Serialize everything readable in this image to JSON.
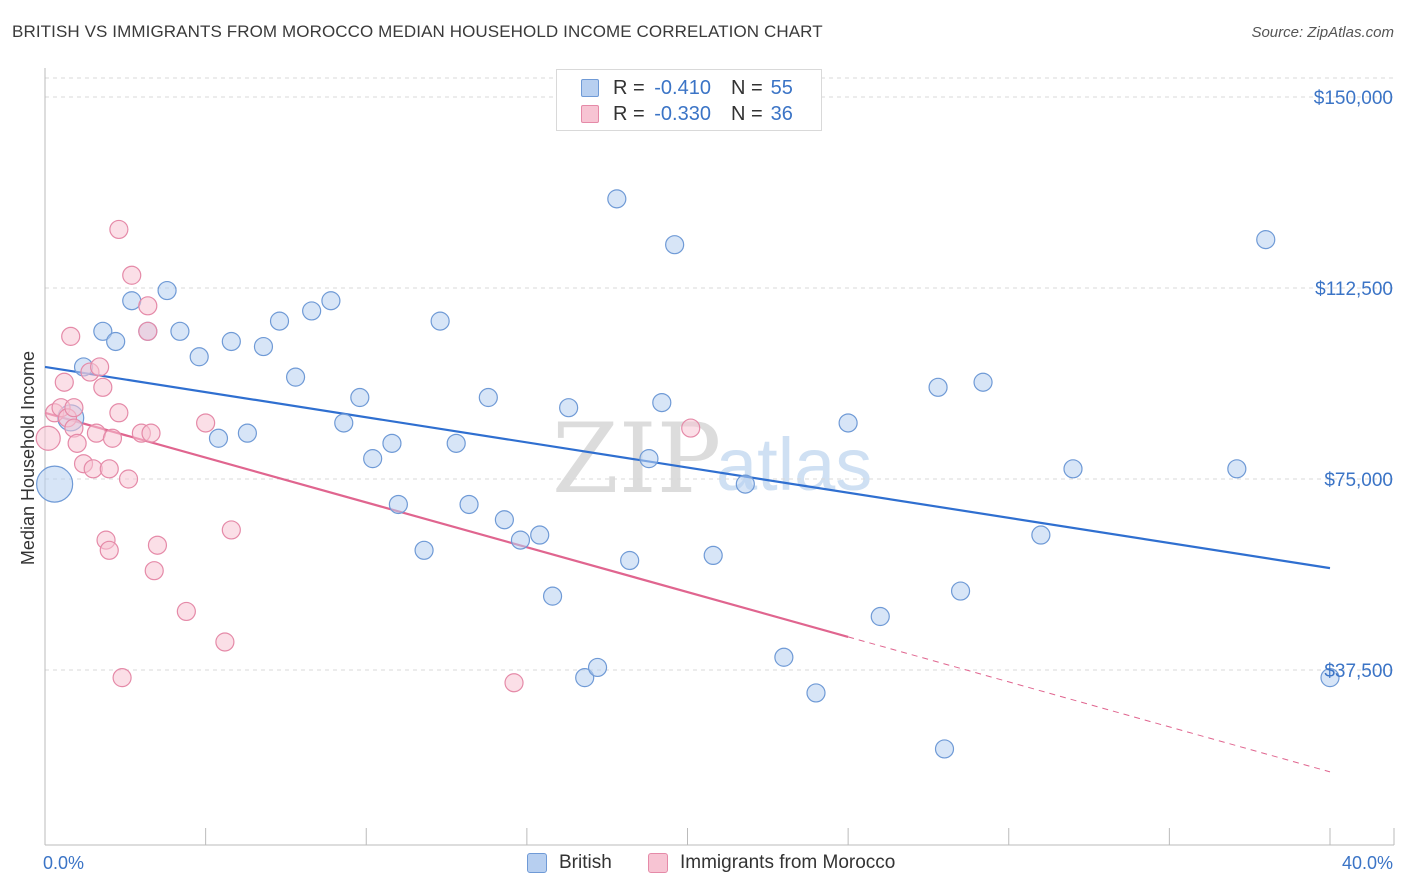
{
  "title": "BRITISH VS IMMIGRANTS FROM MOROCCO MEDIAN HOUSEHOLD INCOME CORRELATION CHART",
  "source": "Source: ZipAtlas.com",
  "legend": {
    "british": {
      "r_label": "R =",
      "r_value": "-0.410",
      "n_label": "N =",
      "n_value": "55"
    },
    "morocco": {
      "r_label": "R =",
      "r_value": "-0.330",
      "n_label": "N =",
      "n_value": "36"
    }
  },
  "bottom_legend": {
    "british": "British",
    "morocco": "Immigrants from Morocco"
  },
  "watermark": {
    "zip": "ZIP",
    "atlas": "atlas"
  },
  "colors": {
    "british_fill": "#b7cff0",
    "british_stroke": "#6f9ad6",
    "british_line": "#2f6fd0",
    "morocco_fill": "#f7c4d3",
    "morocco_stroke": "#e58aa8",
    "morocco_line": "#e0658f",
    "axis_text": "#3b74c6",
    "grid": "#d8d8d8"
  },
  "chart_data": {
    "type": "scatter",
    "title": "BRITISH VS IMMIGRANTS FROM MOROCCO MEDIAN HOUSEHOLD INCOME CORRELATION CHART",
    "xlabel": "",
    "ylabel": "Median Household Income",
    "xlim": [
      0,
      40
    ],
    "ylim": [
      0,
      155000
    ],
    "x_tick_labels": [
      "0.0%",
      "40.0%"
    ],
    "y_ticks": [
      {
        "value": 37500,
        "label": "$37,500"
      },
      {
        "value": 75000,
        "label": "$75,000"
      },
      {
        "value": 112500,
        "label": "$112,500"
      },
      {
        "value": 150000,
        "label": "$150,000"
      }
    ],
    "series": [
      {
        "name": "British",
        "points": [
          [
            0.3,
            74000
          ],
          [
            0.8,
            87000
          ],
          [
            1.2,
            97000
          ],
          [
            1.8,
            104000
          ],
          [
            2.2,
            102000
          ],
          [
            2.7,
            110000
          ],
          [
            3.2,
            104000
          ],
          [
            3.8,
            112000
          ],
          [
            4.2,
            104000
          ],
          [
            4.8,
            99000
          ],
          [
            5.4,
            83000
          ],
          [
            5.8,
            102000
          ],
          [
            6.3,
            84000
          ],
          [
            6.8,
            101000
          ],
          [
            7.3,
            106000
          ],
          [
            7.8,
            95000
          ],
          [
            8.3,
            108000
          ],
          [
            8.9,
            110000
          ],
          [
            9.3,
            86000
          ],
          [
            9.8,
            91000
          ],
          [
            10.2,
            79000
          ],
          [
            10.8,
            82000
          ],
          [
            11.0,
            70000
          ],
          [
            11.8,
            61000
          ],
          [
            12.3,
            106000
          ],
          [
            12.8,
            82000
          ],
          [
            13.2,
            70000
          ],
          [
            13.8,
            91000
          ],
          [
            14.3,
            67000
          ],
          [
            14.8,
            63000
          ],
          [
            15.4,
            64000
          ],
          [
            15.8,
            52000
          ],
          [
            16.3,
            89000
          ],
          [
            16.8,
            36000
          ],
          [
            17.2,
            38000
          ],
          [
            17.8,
            130000
          ],
          [
            18.2,
            59000
          ],
          [
            18.8,
            79000
          ],
          [
            19.2,
            90000
          ],
          [
            19.6,
            121000
          ],
          [
            20.8,
            60000
          ],
          [
            21.8,
            74000
          ],
          [
            23.0,
            40000
          ],
          [
            24.0,
            33000
          ],
          [
            25.0,
            86000
          ],
          [
            26.0,
            48000
          ],
          [
            27.8,
            93000
          ],
          [
            28.0,
            22000
          ],
          [
            28.5,
            53000
          ],
          [
            29.2,
            94000
          ],
          [
            31.0,
            64000
          ],
          [
            32.0,
            77000
          ],
          [
            37.1,
            77000
          ],
          [
            38.0,
            122000
          ],
          [
            40.0,
            36000
          ]
        ]
      },
      {
        "name": "Immigrants from Morocco",
        "points": [
          [
            0.1,
            83000
          ],
          [
            0.3,
            88000
          ],
          [
            0.5,
            89000
          ],
          [
            0.6,
            94000
          ],
          [
            0.7,
            87000
          ],
          [
            0.8,
            103000
          ],
          [
            0.9,
            89000
          ],
          [
            0.9,
            85000
          ],
          [
            1.0,
            82000
          ],
          [
            1.2,
            78000
          ],
          [
            1.4,
            96000
          ],
          [
            1.5,
            77000
          ],
          [
            1.6,
            84000
          ],
          [
            1.7,
            97000
          ],
          [
            1.8,
            93000
          ],
          [
            1.9,
            63000
          ],
          [
            2.0,
            61000
          ],
          [
            2.1,
            83000
          ],
          [
            2.3,
            124000
          ],
          [
            2.3,
            88000
          ],
          [
            2.4,
            36000
          ],
          [
            2.6,
            75000
          ],
          [
            2.7,
            115000
          ],
          [
            3.0,
            84000
          ],
          [
            3.2,
            109000
          ],
          [
            3.2,
            104000
          ],
          [
            3.3,
            84000
          ],
          [
            3.4,
            57000
          ],
          [
            4.4,
            49000
          ],
          [
            5.0,
            86000
          ],
          [
            5.6,
            43000
          ],
          [
            5.8,
            65000
          ],
          [
            14.6,
            35000
          ],
          [
            20.1,
            85000
          ],
          [
            2.0,
            77000
          ],
          [
            3.5,
            62000
          ]
        ]
      }
    ],
    "trend_lines": [
      {
        "series": "British",
        "x": [
          0,
          40
        ],
        "y": [
          97000,
          57500
        ],
        "style": "solid"
      },
      {
        "series": "Immigrants from Morocco",
        "x": [
          0,
          25
        ],
        "y": [
          88000,
          44000
        ],
        "style": "solid"
      },
      {
        "series": "Immigrants from Morocco",
        "x": [
          25,
          40
        ],
        "y": [
          44000,
          17500
        ],
        "style": "dashed"
      }
    ],
    "grid": true,
    "legend_position": "top-center"
  }
}
